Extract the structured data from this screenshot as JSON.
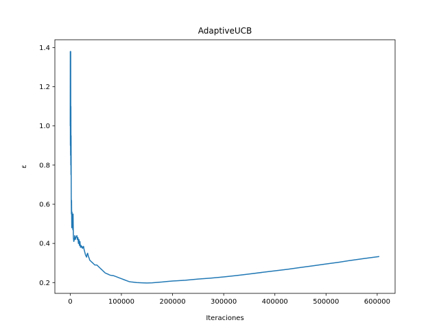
{
  "chart_data": {
    "type": "line",
    "title": "AdaptiveUCB",
    "xlabel": "Iteraciones",
    "ylabel": "ε",
    "xlim": [
      -30000,
      635000
    ],
    "ylim": [
      0.145,
      1.44
    ],
    "xticks": [
      0,
      100000,
      200000,
      300000,
      400000,
      500000,
      600000
    ],
    "xtick_labels": [
      "0",
      "100000",
      "200000",
      "300000",
      "400000",
      "500000",
      "600000"
    ],
    "yticks": [
      0.2,
      0.4,
      0.6,
      0.8,
      1.0,
      1.2,
      1.4
    ],
    "ytick_labels": [
      "0.2",
      "0.4",
      "0.6",
      "0.8",
      "1.0",
      "1.2",
      "1.4"
    ],
    "grid": false,
    "line_color": "#1f77b4",
    "series": [
      {
        "x": [
          0,
          150,
          300,
          500,
          700,
          900,
          1100,
          1300,
          1500,
          1700,
          2000,
          2300,
          2600,
          3000,
          3500,
          4000,
          4500,
          5000,
          5600,
          6200,
          7000,
          8000,
          9000,
          10000,
          11000,
          12000,
          13000,
          14000,
          15000,
          16000,
          17000,
          18000,
          19000,
          20000,
          21000,
          22000,
          23000,
          24000,
          25000,
          26000,
          27000,
          28000,
          29000,
          30000,
          31000,
          32000,
          33000,
          34000,
          35000,
          36000,
          37000,
          38000,
          40000,
          42000,
          44000,
          46000,
          48000,
          50000,
          52000,
          54000,
          56000,
          58000,
          60000,
          62000,
          64000,
          66000,
          68000,
          70000,
          72000,
          74000,
          76000,
          78000,
          80000,
          85000,
          90000,
          95000,
          100000,
          105000,
          110000,
          115000,
          120000,
          130000,
          140000,
          150000,
          160000,
          170000,
          180000,
          190000,
          200000,
          225000,
          250000,
          275000,
          300000,
          325000,
          350000,
          375000,
          400000,
          425000,
          450000,
          475000,
          500000,
          525000,
          550000,
          575000,
          604000
        ],
        "y": [
          1.0,
          1.38,
          0.9,
          1.32,
          0.85,
          1.38,
          0.8,
          1.1,
          0.75,
          0.95,
          0.63,
          0.55,
          0.62,
          0.48,
          0.56,
          0.5,
          0.53,
          0.47,
          0.55,
          0.43,
          0.41,
          0.42,
          0.44,
          0.42,
          0.43,
          0.435,
          0.44,
          0.42,
          0.43,
          0.4,
          0.42,
          0.39,
          0.41,
          0.38,
          0.39,
          0.38,
          0.385,
          0.375,
          0.38,
          0.385,
          0.37,
          0.36,
          0.35,
          0.34,
          0.335,
          0.33,
          0.345,
          0.35,
          0.34,
          0.33,
          0.325,
          0.315,
          0.31,
          0.305,
          0.3,
          0.295,
          0.29,
          0.29,
          0.29,
          0.285,
          0.28,
          0.275,
          0.27,
          0.265,
          0.26,
          0.255,
          0.25,
          0.247,
          0.245,
          0.243,
          0.24,
          0.238,
          0.237,
          0.235,
          0.23,
          0.225,
          0.22,
          0.215,
          0.21,
          0.205,
          0.203,
          0.2,
          0.199,
          0.198,
          0.199,
          0.201,
          0.203,
          0.206,
          0.208,
          0.212,
          0.218,
          0.223,
          0.229,
          0.236,
          0.244,
          0.252,
          0.26,
          0.268,
          0.277,
          0.286,
          0.295,
          0.304,
          0.314,
          0.323,
          0.333
        ]
      }
    ]
  }
}
